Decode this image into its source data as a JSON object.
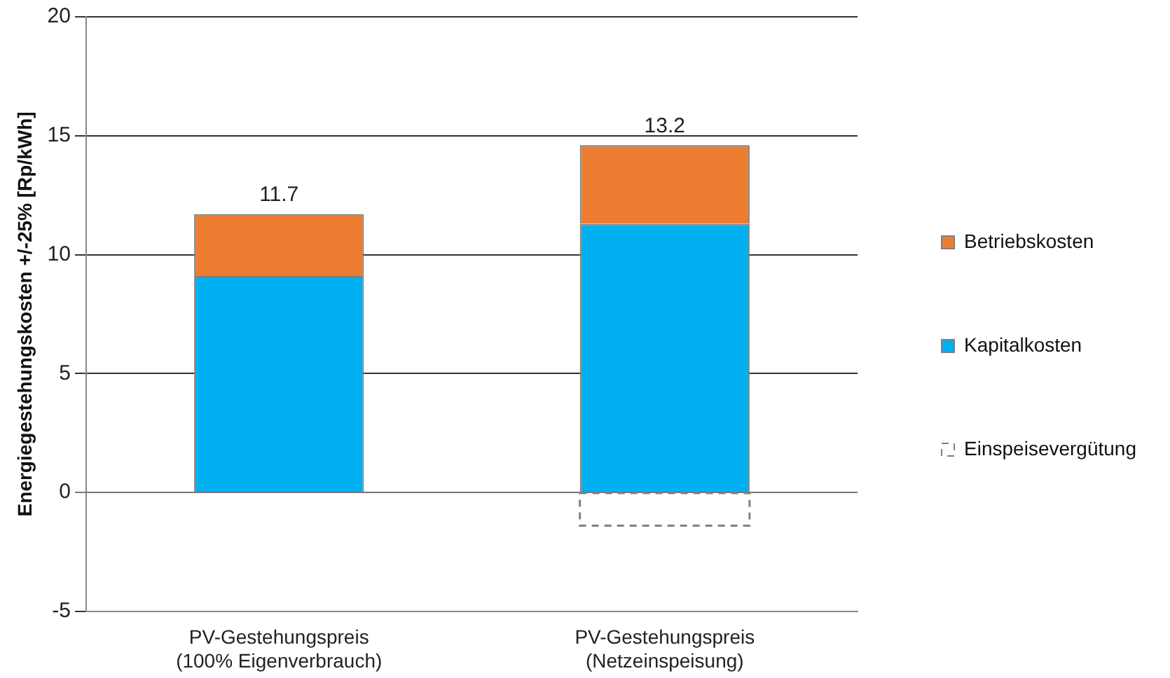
{
  "chart_data": {
    "type": "bar",
    "ylabel": "Energiegestehungskosten +/-25% [Rp/kWh]",
    "categories": [
      "PV-Gestehungspreis\n(100% Eigenverbrauch)",
      "PV-Gestehungspreis\n(Netzeinspeisung)"
    ],
    "series": [
      {
        "name": "Kapitalkosten",
        "color": "#00b0f0",
        "values": [
          9.1,
          11.3
        ]
      },
      {
        "name": "Betriebskosten",
        "color": "#ed7d31",
        "values": [
          2.6,
          3.3
        ]
      },
      {
        "name": "Einspeisevergütung",
        "color": "#808080",
        "line_style": "dashed",
        "values": [
          null,
          -1.4
        ]
      }
    ],
    "stacked": true,
    "totals": [
      "11.7",
      "13.2"
    ],
    "ylim": [
      -5,
      20
    ],
    "yticks": [
      -5,
      0,
      5,
      10,
      15,
      20
    ],
    "grid": "y",
    "legend": "right"
  }
}
